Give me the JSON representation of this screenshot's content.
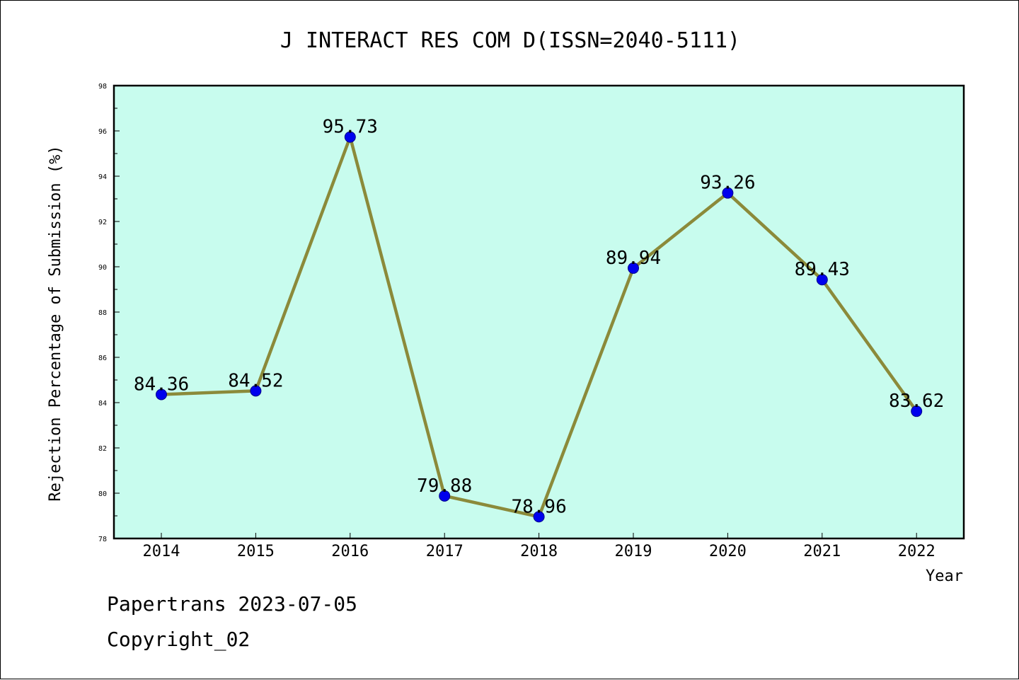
{
  "colors": {
    "plot_background": "#c8fcee",
    "line": "#8b8a3a",
    "marker": "#0000ee",
    "marker_edge": "#00008a",
    "axis": "#000000"
  },
  "chart_data": {
    "type": "line",
    "title": "J INTERACT RES COM D(ISSN=2040-5111)",
    "xlabel": "Year",
    "ylabel": "Rejection Percentage of Submission (%)",
    "categories": [
      "2014",
      "2015",
      "2016",
      "2017",
      "2018",
      "2019",
      "2020",
      "2021",
      "2022"
    ],
    "series": [
      {
        "values": [
          84.36,
          84.52,
          95.73,
          79.88,
          78.96,
          89.94,
          93.26,
          89.43,
          83.62
        ],
        "labels": [
          "84.36",
          "84.52",
          "95.73",
          "79.88",
          "78.96",
          "89.94",
          "93.26",
          "89.43",
          "83.62"
        ]
      }
    ],
    "ylim": [
      78,
      98
    ],
    "yticks": [
      "78",
      "80",
      "82",
      "84",
      "86",
      "88",
      "90",
      "92",
      "94",
      "96",
      "98"
    ],
    "grid": false,
    "legend": "none"
  },
  "footer": {
    "line1": "Papertrans 2023-07-05",
    "line2": "Copyright_02"
  }
}
